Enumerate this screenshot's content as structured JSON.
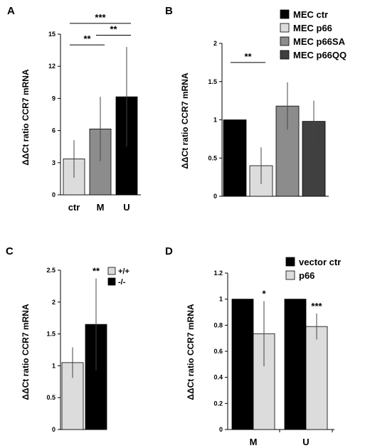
{
  "chart_data": [
    {
      "panel": "A",
      "type": "bar",
      "ylabel": "ΔΔCt ratio CCR7 mRNA",
      "ylim": [
        0,
        15
      ],
      "yticks": [
        0,
        3,
        6,
        9,
        12,
        15
      ],
      "categories": [
        "ctr",
        "M",
        "U"
      ],
      "values": [
        3.35,
        6.15,
        9.15
      ],
      "errors": [
        1.75,
        3.0,
        4.65
      ],
      "colors": [
        "#dcdcdc",
        "#8c8c8c",
        "#000000"
      ],
      "significance": [
        {
          "from": 0,
          "to": 1,
          "level": 14.0,
          "label": "**"
        },
        {
          "from": 1,
          "to": 2,
          "level": 14.9,
          "label": "**"
        },
        {
          "from": 0,
          "to": 2,
          "level": 16.0,
          "label": "***"
        }
      ]
    },
    {
      "panel": "B",
      "type": "bar",
      "ylabel": "ΔΔCt ratio CCR7 mRNA",
      "ylim": [
        0,
        2
      ],
      "yticks": [
        0,
        0.5,
        1,
        1.5,
        2
      ],
      "categories": [
        "MEC ctr",
        "MEC p66",
        "MEC p66SA",
        "MEC p66QQ"
      ],
      "values": [
        1.0,
        0.4,
        1.18,
        0.98
      ],
      "errors": [
        0,
        0.24,
        0.31,
        0.27
      ],
      "colors": [
        "#000000",
        "#dcdcdc",
        "#8c8c8c",
        "#404040"
      ],
      "legend": [
        "MEC ctr",
        "MEC p66",
        "MEC p66SA",
        "MEC p66QQ"
      ],
      "significance": [
        {
          "from": 0,
          "to": 1,
          "level": 1.75,
          "label": "**"
        }
      ]
    },
    {
      "panel": "C",
      "type": "bar",
      "ylabel": "ΔΔCt ratio CCR7 mRNA",
      "ylim": [
        0,
        2.5
      ],
      "yticks": [
        0,
        0.5,
        1,
        1.5,
        2,
        2.5
      ],
      "categories": [
        "+/+",
        "-/-"
      ],
      "values": [
        1.05,
        1.65
      ],
      "errors": [
        0.24,
        0.72
      ],
      "colors": [
        "#dcdcdc",
        "#000000"
      ],
      "legend": [
        "+/+",
        "-/-"
      ],
      "annotations": [
        {
          "bar": 1,
          "label": "**"
        }
      ]
    },
    {
      "panel": "D",
      "type": "bar",
      "ylabel": "ΔΔCt ratio CCR7 mRNA",
      "ylim": [
        0,
        1.2
      ],
      "yticks": [
        0,
        0.2,
        0.4,
        0.6,
        0.8,
        1,
        1.2
      ],
      "categories": [
        "M",
        "U"
      ],
      "series": [
        {
          "name": "vector ctr",
          "values": [
            1.0,
            1.0
          ],
          "errors": [
            0,
            0
          ],
          "color": "#000000"
        },
        {
          "name": "p66",
          "values": [
            0.735,
            0.79
          ],
          "errors": [
            0.25,
            0.1
          ],
          "color": "#dcdcdc"
        }
      ],
      "annotations": [
        {
          "category": 0,
          "series": 1,
          "label": "*"
        },
        {
          "category": 1,
          "series": 1,
          "label": "***"
        }
      ]
    }
  ]
}
